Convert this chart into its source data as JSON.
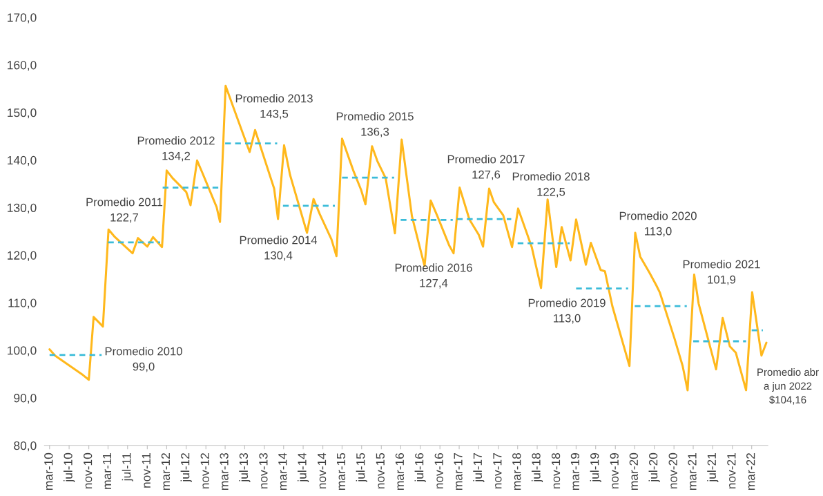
{
  "chart_data": {
    "type": "line",
    "ylim": [
      80,
      170
    ],
    "yticks": [
      {
        "value": 80,
        "label": "80,0"
      },
      {
        "value": 90,
        "label": "90,0"
      },
      {
        "value": 100,
        "label": "100,0"
      },
      {
        "value": 110,
        "label": "110,0"
      },
      {
        "value": 120,
        "label": "120,0"
      },
      {
        "value": 130,
        "label": "130,0"
      },
      {
        "value": 140,
        "label": "140,0"
      },
      {
        "value": 150,
        "label": "150,0"
      },
      {
        "value": 160,
        "label": "160,0"
      },
      {
        "value": 170,
        "label": "170,0"
      }
    ],
    "xlim": [
      "2010-01-28",
      "2022-06-10"
    ],
    "xticks": [
      {
        "value": "2010-03",
        "label": "mar-10"
      },
      {
        "value": "2010-07",
        "label": "jul-10"
      },
      {
        "value": "2010-11",
        "label": "nov-10"
      },
      {
        "value": "2011-03",
        "label": "mar-11"
      },
      {
        "value": "2011-07",
        "label": "jul-11"
      },
      {
        "value": "2011-11",
        "label": "nov-11"
      },
      {
        "value": "2012-03",
        "label": "mar-12"
      },
      {
        "value": "2012-07",
        "label": "jul-12"
      },
      {
        "value": "2012-11",
        "label": "nov-12"
      },
      {
        "value": "2013-03",
        "label": "mar-13"
      },
      {
        "value": "2013-07",
        "label": "jul-13"
      },
      {
        "value": "2013-11",
        "label": "nov-13"
      },
      {
        "value": "2014-03",
        "label": "mar-14"
      },
      {
        "value": "2014-07",
        "label": "jul-14"
      },
      {
        "value": "2014-11",
        "label": "nov-14"
      },
      {
        "value": "2015-03",
        "label": "mar-15"
      },
      {
        "value": "2015-07",
        "label": "jul-15"
      },
      {
        "value": "2015-11",
        "label": "nov-15"
      },
      {
        "value": "2016-03",
        "label": "mar-16"
      },
      {
        "value": "2016-07",
        "label": "jul-16"
      },
      {
        "value": "2016-11",
        "label": "nov-16"
      },
      {
        "value": "2017-03",
        "label": "mar-17"
      },
      {
        "value": "2017-07",
        "label": "jul-17"
      },
      {
        "value": "2017-11",
        "label": "nov-17"
      },
      {
        "value": "2018-03",
        "label": "mar-18"
      },
      {
        "value": "2018-07",
        "label": "jul-18"
      },
      {
        "value": "2018-11",
        "label": "nov-18"
      },
      {
        "value": "2019-03",
        "label": "mar-19"
      },
      {
        "value": "2019-07",
        "label": "jul-19"
      },
      {
        "value": "2019-11",
        "label": "nov-19"
      },
      {
        "value": "2020-03",
        "label": "mar-20"
      },
      {
        "value": "2020-07",
        "label": "jul-20"
      },
      {
        "value": "2020-11",
        "label": "nov-20"
      },
      {
        "value": "2021-03",
        "label": "mar-21"
      },
      {
        "value": "2021-07",
        "label": "jul-21"
      },
      {
        "value": "2021-11",
        "label": "nov-21"
      },
      {
        "value": "2022-03",
        "label": "mar-22"
      }
    ],
    "grid": false,
    "series": [
      {
        "color": "#ffb81c",
        "line_style": "solid",
        "x": [
          "2010-03-01",
          "2010-04-04",
          "2010-09-25",
          "2010-11-01",
          "2010-12-01",
          "2011-01-28",
          "2011-03-04",
          "2011-04-13",
          "2011-08-01",
          "2011-09-04",
          "2011-11-01",
          "2011-12-07",
          "2012-02-01",
          "2012-03-01",
          "2012-04-07",
          "2012-07-01",
          "2012-07-28",
          "2012-09-07",
          "2012-10-10",
          "2013-01-07",
          "2013-01-28",
          "2013-03-04",
          "2013-05-01",
          "2013-06-25",
          "2013-08-01",
          "2013-09-04",
          "2014-01-01",
          "2014-01-25",
          "2014-03-04",
          "2014-04-10",
          "2014-07-25",
          "2014-09-04",
          "2014-10-13",
          "2014-12-25",
          "2015-01-25",
          "2015-03-01",
          "2015-05-10",
          "2015-06-28",
          "2015-07-25",
          "2015-09-04",
          "2015-10-07",
          "2015-11-28",
          "2016-01-25",
          "2016-03-07",
          "2016-05-10",
          "2016-07-28",
          "2016-09-04",
          "2016-10-16",
          "2016-12-28",
          "2017-01-25",
          "2017-03-04",
          "2017-05-04",
          "2017-07-01",
          "2017-07-28",
          "2017-09-04",
          "2017-10-04",
          "2017-12-01",
          "2018-01-25",
          "2018-03-04",
          "2018-05-28",
          "2018-07-25",
          "2018-09-04",
          "2018-10-28",
          "2018-12-01",
          "2019-01-25",
          "2019-03-01",
          "2019-05-01",
          "2019-06-01",
          "2019-08-01",
          "2019-08-28",
          "2019-10-13",
          "2020-01-28",
          "2020-03-04",
          "2020-04-04",
          "2020-06-01",
          "2020-07-13",
          "2020-08-04",
          "2020-11-04",
          "2020-12-25",
          "2021-01-25",
          "2021-03-07",
          "2021-04-04",
          "2021-07-22",
          "2021-09-01",
          "2021-10-16",
          "2021-11-22",
          "2022-01-25",
          "2022-03-04",
          "2022-05-01",
          "2022-06-01"
        ],
        "values": [
          100.2,
          98.9,
          94.8,
          93.8,
          107.0,
          105.0,
          125.4,
          123.8,
          120.4,
          123.6,
          121.8,
          123.8,
          121.7,
          137.8,
          136.2,
          133.3,
          130.5,
          139.9,
          137.3,
          130.1,
          127.0,
          155.6,
          150.2,
          145.1,
          141.7,
          146.3,
          134.0,
          127.6,
          143.1,
          136.9,
          124.7,
          131.8,
          128.6,
          123.3,
          119.8,
          144.5,
          137.8,
          133.7,
          130.7,
          142.9,
          139.8,
          136.2,
          124.6,
          144.3,
          128.2,
          117.7,
          131.5,
          128.2,
          122.1,
          120.4,
          134.2,
          127.5,
          124.3,
          121.8,
          134.0,
          131.1,
          128.4,
          121.7,
          129.8,
          121.7,
          113.1,
          131.7,
          117.5,
          125.9,
          118.9,
          127.5,
          118.0,
          122.6,
          116.9,
          116.6,
          109.3,
          96.7,
          124.7,
          119.7,
          116.3,
          113.7,
          112.2,
          102.5,
          96.7,
          91.6,
          115.9,
          109.8,
          96.0,
          106.8,
          100.8,
          99.5,
          91.6,
          112.2,
          98.9,
          101.6
        ]
      },
      {
        "color": "#3bbcd9",
        "line_style": "dashed",
        "x": [
          "2010-03-01",
          "2011-01-20"
        ],
        "values": [
          99.0,
          99.0
        ]
      },
      {
        "color": "#3bbcd9",
        "line_style": "dashed",
        "x": [
          "2011-03-01",
          "2012-01-20"
        ],
        "values": [
          122.7,
          122.7
        ]
      },
      {
        "color": "#3bbcd9",
        "line_style": "dashed",
        "x": [
          "2012-02-05",
          "2013-01-20"
        ],
        "values": [
          134.2,
          134.2
        ]
      },
      {
        "color": "#3bbcd9",
        "line_style": "dashed",
        "x": [
          "2013-03-01",
          "2014-01-20"
        ],
        "values": [
          143.5,
          143.5
        ]
      },
      {
        "color": "#3bbcd9",
        "line_style": "dashed",
        "x": [
          "2014-02-25",
          "2015-01-15"
        ],
        "values": [
          130.4,
          130.4
        ]
      },
      {
        "color": "#3bbcd9",
        "line_style": "dashed",
        "x": [
          "2015-03-01",
          "2016-01-20"
        ],
        "values": [
          136.3,
          136.3
        ]
      },
      {
        "color": "#3bbcd9",
        "line_style": "dashed",
        "x": [
          "2016-03-01",
          "2017-01-20"
        ],
        "values": [
          127.4,
          127.4
        ]
      },
      {
        "color": "#3bbcd9",
        "line_style": "dashed",
        "x": [
          "2017-02-15",
          "2018-01-20"
        ],
        "values": [
          127.6,
          127.6
        ]
      },
      {
        "color": "#3bbcd9",
        "line_style": "dashed",
        "x": [
          "2018-03-01",
          "2019-01-20"
        ],
        "values": [
          122.5,
          122.5
        ]
      },
      {
        "color": "#3bbcd9",
        "line_style": "dashed",
        "x": [
          "2019-03-01",
          "2020-01-20"
        ],
        "values": [
          113.0,
          113.0
        ]
      },
      {
        "color": "#3bbcd9",
        "line_style": "dashed",
        "x": [
          "2020-03-01",
          "2021-01-20"
        ],
        "values": [
          109.3,
          109.3
        ]
      },
      {
        "color": "#3bbcd9",
        "line_style": "dashed",
        "x": [
          "2021-03-01",
          "2022-01-25"
        ],
        "values": [
          101.9,
          101.9
        ]
      },
      {
        "color": "#3bbcd9",
        "line_style": "dashed",
        "x": [
          "2022-03-01",
          "2022-05-10"
        ],
        "values": [
          104.2,
          104.2
        ]
      }
    ],
    "annotations": [
      "Promedio 2010\n99,0",
      "Promedio 2011\n122,7",
      "Promedio 2012\n134,2",
      "Promedio 2013\n143,5",
      "Promedio 2014\n130,4",
      "Promedio 2015\n136,3",
      "Promedio 2016\n127,4",
      "Promedio 2017\n127,6",
      "Promedio 2018\n122,5",
      "Promedio 2019\n113,0",
      "Promedio 2020\n113,0",
      "Promedio 2021\n101,9",
      "Promedio abr\na jun 2022\n$104,16"
    ]
  }
}
